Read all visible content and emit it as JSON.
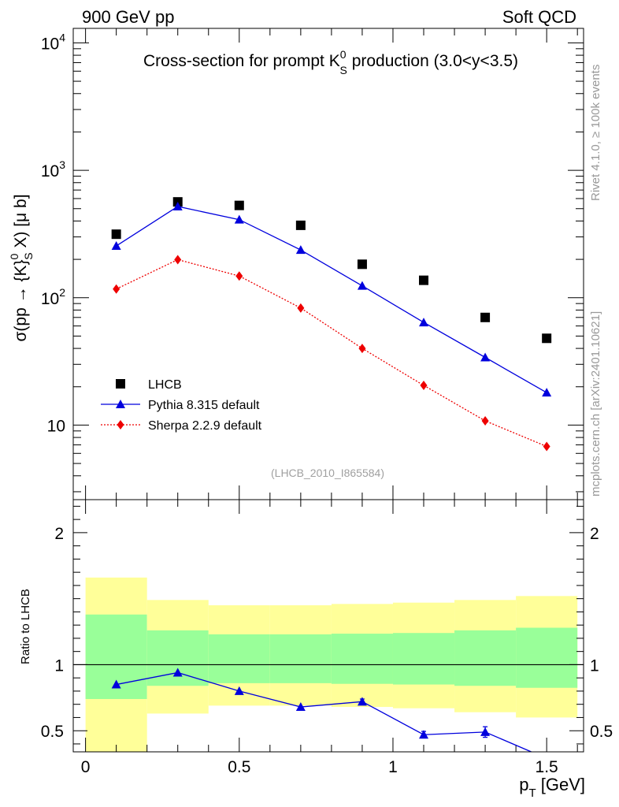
{
  "header": {
    "left": "900 GeV pp",
    "right": "Soft QCD"
  },
  "side_labels": {
    "rivet": "Rivet 4.1.0, ≥ 100k events",
    "mcplots": "mcplots.cern.ch [arXiv:2401.10621]"
  },
  "colors": {
    "data": "#000000",
    "pythia": "#0000dd",
    "sherpa": "#ee0000",
    "band_inner": "#99ff99",
    "band_outer": "#ffff99"
  },
  "chart_data": [
    {
      "type": "scatter",
      "panel": "main",
      "title_parts": {
        "before": "Cross-section for prompt K",
        "sup": "0",
        "sub": "S",
        "after": " production (3.0<y<3.5)"
      },
      "ylabel_parts": {
        "before": "σ(pp → {K}",
        "sup": "0",
        "sub": "S",
        "after": " X) [μ b]"
      },
      "y_scale": "log",
      "ylim": [
        2.6,
        13000
      ],
      "xlim": [
        -0.04,
        1.62
      ],
      "y_ticks": [
        {
          "value": 10,
          "label": "10"
        },
        {
          "value": 100,
          "label": "10",
          "exp": "2"
        },
        {
          "value": 1000,
          "label": "10",
          "exp": "3"
        },
        {
          "value": 10000,
          "label": "10",
          "exp": "4"
        }
      ],
      "series": [
        {
          "name": "LHCB",
          "marker": "square",
          "x": [
            0.1,
            0.3,
            0.5,
            0.7,
            0.9,
            1.1,
            1.3,
            1.5
          ],
          "y": [
            315,
            565,
            530,
            370,
            183,
            137,
            70,
            48
          ]
        },
        {
          "name": "Pythia 8.315 default",
          "marker": "triangle",
          "line": "solid",
          "x": [
            0.1,
            0.3,
            0.5,
            0.7,
            0.9,
            1.1,
            1.3,
            1.5
          ],
          "y": [
            255,
            520,
            410,
            237,
            124,
            64,
            34,
            18
          ]
        },
        {
          "name": "Sherpa 2.2.9 default",
          "marker": "diamond",
          "line": "dotted",
          "x": [
            0.1,
            0.3,
            0.5,
            0.7,
            0.9,
            1.1,
            1.3,
            1.5
          ],
          "y": [
            117,
            199,
            148,
            83,
            40,
            20.5,
            10.8,
            6.8
          ]
        }
      ],
      "legend_position": "lower-left",
      "watermark": "(LHCB_2010_I865584)"
    },
    {
      "type": "line",
      "panel": "ratio",
      "ylabel": "Ratio to LHCB",
      "xlabel_parts": {
        "before": "p",
        "sub": "T",
        "after": " [GeV]"
      },
      "ylim": [
        0.34,
        2.25
      ],
      "xlim": [
        -0.04,
        1.62
      ],
      "reference_line": 1,
      "y_ticks": [
        {
          "value": 0.5,
          "label": "0.5"
        },
        {
          "value": 1,
          "label": "1"
        },
        {
          "value": 2,
          "label": "2"
        }
      ],
      "x_ticks": [
        {
          "value": 0,
          "label": "0"
        },
        {
          "value": 0.5,
          "label": "0.5"
        },
        {
          "value": 1,
          "label": "1"
        },
        {
          "value": 1.5,
          "label": "1.5"
        }
      ],
      "bands": {
        "bin_edges": [
          0,
          0.2,
          0.4,
          0.6,
          0.8,
          1.0,
          1.2,
          1.4,
          1.6
        ],
        "inner_low": [
          0.74,
          0.84,
          0.86,
          0.86,
          0.855,
          0.85,
          0.84,
          0.825
        ],
        "inner_high": [
          1.38,
          1.26,
          1.23,
          1.23,
          1.235,
          1.24,
          1.26,
          1.28
        ],
        "outer_low": [
          0.34,
          0.63,
          0.69,
          0.69,
          0.68,
          0.67,
          0.64,
          0.6
        ],
        "outer_high": [
          1.66,
          1.49,
          1.45,
          1.45,
          1.46,
          1.47,
          1.49,
          1.52
        ]
      },
      "series": [
        {
          "name": "Pythia 8.315 default / LHCB",
          "marker": "triangle",
          "x": [
            0.1,
            0.3,
            0.5,
            0.7,
            0.9,
            1.1,
            1.3,
            1.45
          ],
          "y": [
            0.85,
            0.94,
            0.8,
            0.68,
            0.72,
            0.47,
            0.49,
            0.34
          ],
          "err": [
            0,
            0,
            0,
            0,
            0.02,
            0.025,
            0.04,
            0
          ],
          "draw_marker": [
            true,
            true,
            true,
            true,
            true,
            true,
            true,
            false
          ]
        }
      ]
    }
  ]
}
